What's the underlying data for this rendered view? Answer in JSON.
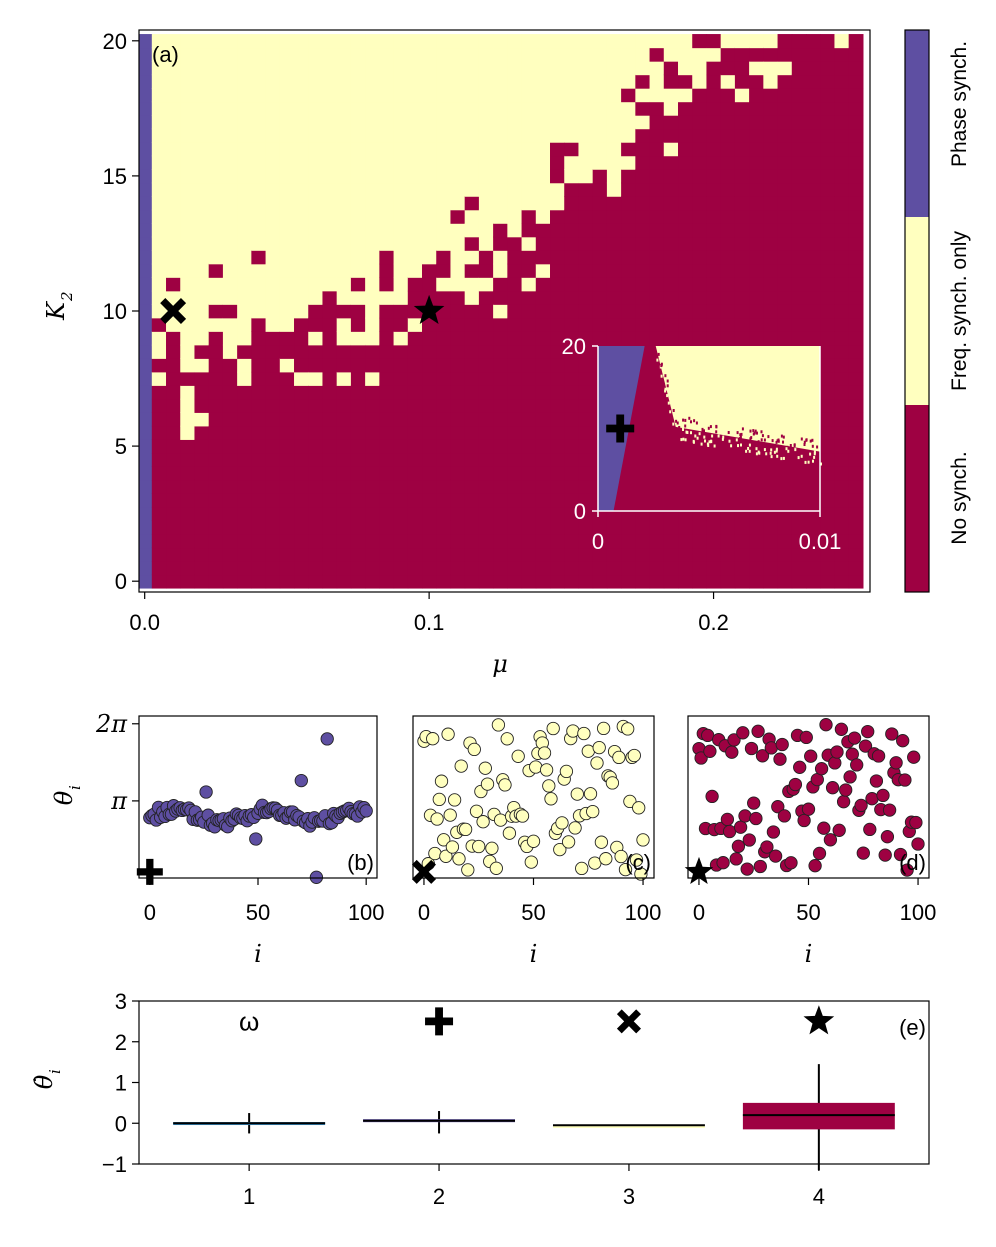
{
  "colors": {
    "phase": "#5e4fa2",
    "freq": "#ffffbf",
    "none": "#9e0142",
    "inset_axis": "#ffffff",
    "box_line": "#000000",
    "omega_box": "#3288bd"
  },
  "chart_data": [
    {
      "panel": "(a)",
      "type": "heatmap",
      "xlabel": "μ",
      "ylabel": "K₂",
      "xlim": [
        -0.002,
        0.255
      ],
      "ylim": [
        -0.4,
        20.4
      ],
      "x_ticks": [
        0.0,
        0.1,
        0.2
      ],
      "x_tick_labels": [
        "0.0",
        "0.1",
        "0.2"
      ],
      "y_ticks": [
        0,
        5,
        10,
        15,
        20
      ],
      "y_tick_labels": [
        "0",
        "5",
        "10",
        "15",
        "20"
      ],
      "x_grid": {
        "start": 0.0,
        "step": 0.005,
        "count": 51
      },
      "y_grid": {
        "start": 0.0,
        "step": 0.5,
        "count": 41
      },
      "categories": [
        "No synch.",
        "Freq. synch. only",
        "Phase synch."
      ],
      "boundary_mu": [
        0.0,
        0.005,
        0.01,
        0.015,
        0.02,
        0.025,
        0.03,
        0.035,
        0.04,
        0.045,
        0.05,
        0.055,
        0.06,
        0.065,
        0.07,
        0.075,
        0.08,
        0.085,
        0.09,
        0.095,
        0.1,
        0.105,
        0.11,
        0.115,
        0.12,
        0.125,
        0.13,
        0.135,
        0.14,
        0.145,
        0.15,
        0.155,
        0.16,
        0.165,
        0.17,
        0.175,
        0.18,
        0.185,
        0.19,
        0.195,
        0.2,
        0.205,
        0.21,
        0.215,
        0.22,
        0.225,
        0.23,
        0.235,
        0.24,
        0.245,
        0.25
      ],
      "boundary_K2": [
        0.0,
        8.5,
        9.0,
        6.5,
        8.0,
        10.5,
        8.5,
        9.0,
        10.0,
        9.5,
        10.0,
        9.5,
        9.0,
        9.0,
        8.5,
        9.5,
        9.5,
        10.0,
        10.5,
        11.5,
        12.0,
        12.5,
        11.5,
        12.0,
        12.5,
        11.5,
        12.0,
        12.5,
        13.5,
        14.0,
        15.0,
        14.5,
        16.0,
        15.5,
        16.5,
        17.0,
        17.5,
        18.0,
        18.5,
        19.0,
        19.5,
        19.5,
        20.0,
        20.5,
        20.5,
        20.5,
        20.5,
        20.5,
        20.5,
        20.5,
        20.5
      ],
      "markers": [
        {
          "symbol": "cross",
          "mu": 0.01,
          "K2": 10
        },
        {
          "symbol": "star",
          "mu": 0.1,
          "K2": 10
        }
      ],
      "inset": {
        "x_ticks": [
          0,
          0.01
        ],
        "x_tick_labels": [
          "0",
          "0.01"
        ],
        "y_ticks": [
          0,
          20
        ],
        "y_tick_labels": [
          "0",
          "20"
        ],
        "xlim": [
          0,
          0.01
        ],
        "ylim": [
          0,
          20
        ],
        "phase_edge_mu": [
          0.0007,
          0.0021
        ],
        "freq_edge_mu": [
          0.0026,
          0.0035
        ],
        "freq_bottom_K2": [
          10.2,
          7.2
        ],
        "marker": {
          "symbol": "plus",
          "mu": 0.001,
          "K2": 10
        }
      }
    },
    {
      "panel": "(b)",
      "type": "scatter",
      "xlabel": "i",
      "ylabel": "θ_i",
      "color": "phase",
      "x_ticks": [
        0,
        50,
        100
      ],
      "x_tick_labels": [
        "0",
        "50",
        "100"
      ],
      "y_ticks": [
        3.14159,
        6.28318
      ],
      "y_tick_labels": [
        "π",
        "2π"
      ],
      "xlim": [
        -5,
        105
      ],
      "ylim": [
        0,
        6.6
      ],
      "marker": "plus",
      "pattern": "phase"
    },
    {
      "panel": "(c)",
      "type": "scatter",
      "xlabel": "i",
      "color": "freq",
      "x_ticks": [
        0,
        50,
        100
      ],
      "x_tick_labels": [
        "0",
        "50",
        "100"
      ],
      "xlim": [
        -5,
        105
      ],
      "ylim": [
        0,
        6.6
      ],
      "marker": "cross",
      "pattern": "random",
      "seed": 17
    },
    {
      "panel": "(d)",
      "type": "scatter",
      "xlabel": "i",
      "color": "none",
      "x_ticks": [
        0,
        50,
        100
      ],
      "x_tick_labels": [
        "0",
        "50",
        "100"
      ],
      "xlim": [
        -5,
        105
      ],
      "ylim": [
        0,
        6.6
      ],
      "marker": "star",
      "pattern": "random",
      "seed": 91
    },
    {
      "panel": "(e)",
      "type": "box",
      "ylabel": "θ̇_i",
      "categories": [
        "1",
        "2",
        "3",
        "4"
      ],
      "ylim": [
        -1,
        3
      ],
      "y_ticks": [
        -1,
        0,
        1,
        2,
        3
      ],
      "y_tick_labels": [
        "−1",
        "0",
        "1",
        "2",
        "3"
      ],
      "group_labels": [
        "ω",
        "plus",
        "cross",
        "star"
      ],
      "boxes": [
        {
          "x": 1,
          "q1": -0.02,
          "median": 0.0,
          "q3": 0.03,
          "whisker_low": -0.25,
          "whisker_high": 0.25,
          "color": "omega_box"
        },
        {
          "x": 2,
          "q1": 0.04,
          "median": 0.06,
          "q3": 0.1,
          "whisker_low": -0.25,
          "whisker_high": 0.3,
          "color": "phase"
        },
        {
          "x": 3,
          "q1": -0.06,
          "median": -0.05,
          "q3": -0.04,
          "whisker_low": -0.06,
          "whisker_high": -0.04,
          "color": "freq"
        },
        {
          "x": 4,
          "q1": -0.15,
          "median": 0.2,
          "q3": 0.5,
          "whisker_low": -1.15,
          "whisker_high": 1.45,
          "color": "none"
        }
      ]
    }
  ],
  "labels": {
    "panel_a": "(a)",
    "panel_b": "(b)",
    "panel_c": "(c)",
    "panel_d": "(d)",
    "panel_e": "(e)",
    "xlabel_mu": "μ",
    "ylabel_K": "K",
    "ylabel_K_sub": "2",
    "xlabel_i": "i",
    "ylabel_theta": "θ",
    "ylabel_theta_sub": "i",
    "ylabel_dtheta": "θ̇",
    "ylabel_dtheta_sub": "i",
    "omega": "ω",
    "colorbar": [
      "No synch.",
      "Freq. synch. only",
      "Phase synch."
    ]
  }
}
